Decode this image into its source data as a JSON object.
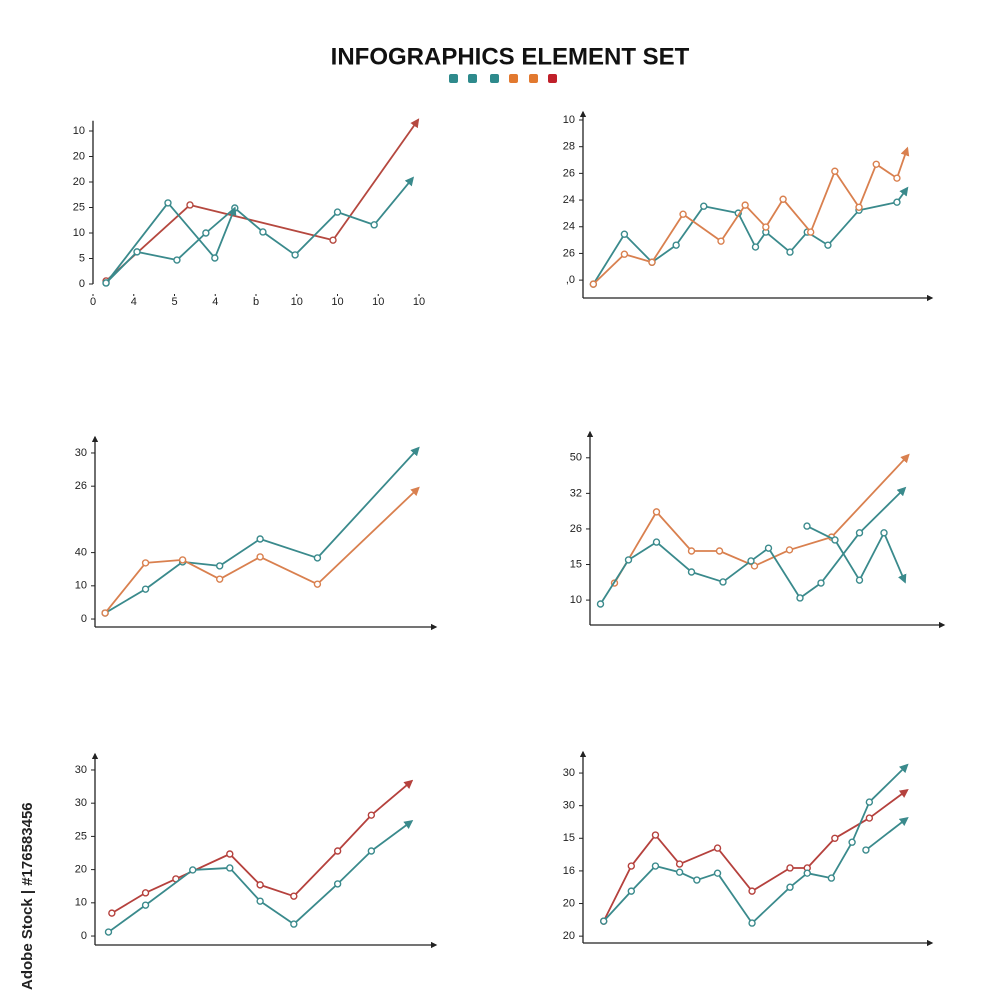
{
  "title": "INFOGRAPHICS ELEMENT SET",
  "watermark": "Adobe Stock | #176583456",
  "chart_data": [
    {
      "type": "line",
      "xlim": [
        0,
        8
      ],
      "ylim": [
        0,
        32
      ],
      "xticks": [
        0,
        {
          "value": 1,
          "label": "4"
        },
        {
          "value": 2,
          "label": "5"
        },
        {
          "value": 3,
          "label": "4"
        },
        {
          "value": 4,
          "label": "b"
        },
        {
          "value": 5,
          "label": "10"
        },
        {
          "value": 6,
          "label": "10"
        },
        {
          "value": 7,
          "label": "10"
        },
        {
          "value": 8,
          "label": "10"
        }
      ],
      "yticks": [
        0,
        5,
        10,
        {
          "value": 15,
          "label": "25"
        },
        {
          "value": 20,
          "label": "20"
        },
        {
          "value": 25,
          "label": "20"
        },
        {
          "value": 30,
          "label": "10"
        }
      ],
      "series": [
        {
          "color": "#b5483f",
          "x": [
            0.32,
            2.38,
            5.89,
            7.98
          ],
          "values": [
            0.6,
            15.5,
            8.6,
            32.2
          ]
        },
        {
          "color": "#3a8a8c",
          "x": [
            0.32,
            1.08,
            2.06,
            2.77,
            3.48,
            4.17,
            4.96,
            6.0,
            6.9,
            7.85
          ],
          "values": [
            0.2,
            6.3,
            4.7,
            10,
            14.9,
            10.2,
            5.7,
            14.1,
            11.6,
            20.8
          ]
        },
        {
          "color": "#3a8a8c",
          "x": [
            0.32,
            1.84,
            2.99,
            3.48
          ],
          "values": [
            0.2,
            15.9,
            5.1,
            14.9
          ]
        }
      ]
    },
    {
      "type": "line",
      "xlim": [
        0,
        1
      ],
      "ylim": [
        -0.67,
        6
      ],
      "yticks": [
        {
          "value": 0,
          "label": ",0"
        },
        {
          "value": 1,
          "label": "26"
        },
        {
          "value": 2,
          "label": "24"
        },
        {
          "value": 3,
          "label": "24"
        },
        {
          "value": 4,
          "label": "26"
        },
        {
          "value": 5,
          "label": "28"
        },
        {
          "value": 6,
          "label": "10"
        }
      ],
      "series": [
        {
          "color": "#3a8a8c",
          "x": [
            0.03,
            0.12,
            0.2,
            0.27,
            0.35,
            0.45,
            0.5,
            0.53,
            0.6,
            0.65,
            0.71,
            0.8,
            0.91,
            0.94
          ],
          "values": [
            -0.15,
            1.72,
            0.67,
            1.31,
            2.77,
            2.51,
            1.24,
            1.8,
            1.05,
            1.8,
            1.31,
            2.62,
            2.92,
            3.45
          ]
        },
        {
          "color": "#d9804f",
          "x": [
            0.03,
            0.12,
            0.2,
            0.29,
            0.4,
            0.47,
            0.53,
            0.58,
            0.66,
            0.73,
            0.8,
            0.85,
            0.91,
            0.94
          ],
          "values": [
            -0.15,
            0.97,
            0.67,
            2.47,
            1.46,
            2.81,
            1.99,
            3.03,
            1.8,
            4.08,
            2.73,
            4.34,
            3.82,
            4.94
          ]
        }
      ]
    },
    {
      "type": "line",
      "xlim": [
        0,
        1
      ],
      "ylim": [
        -2.4,
        52.4
      ],
      "yticks": [
        0,
        10,
        {
          "value": 20,
          "label": "40"
        },
        {
          "value": 40,
          "label": "26"
        },
        {
          "value": 50,
          "label": "30"
        }
      ],
      "series": [
        {
          "color": "#3a8a8c",
          "x": [
            0.03,
            0.15,
            0.26,
            0.37,
            0.49,
            0.66,
            0.96
          ],
          "values": [
            1.8,
            9,
            17.2,
            16,
            24.1,
            18.4,
            51.5
          ]
        },
        {
          "color": "#d9804f",
          "x": [
            0.03,
            0.15,
            0.26,
            0.37,
            0.49,
            0.66,
            0.96
          ],
          "values": [
            1.8,
            16.9,
            17.8,
            12,
            18.7,
            10.5,
            39.5
          ]
        }
      ]
    },
    {
      "type": "line",
      "xlim": [
        0,
        1
      ],
      "ylim": [
        -0.7,
        4.5
      ],
      "yticks": [
        {
          "value": 0,
          "label": "10"
        },
        {
          "value": 1,
          "label": "15"
        },
        {
          "value": 2,
          "label": "26"
        },
        {
          "value": 3,
          "label": "32"
        },
        {
          "value": 4,
          "label": "50"
        }
      ],
      "series": [
        {
          "color": "#d9804f",
          "x": [
            0.07,
            0.19,
            0.29,
            0.37,
            0.47,
            0.57,
            0.69,
            0.91
          ],
          "values": [
            0.48,
            2.48,
            1.38,
            1.38,
            0.96,
            1.41,
            1.77,
            4.08
          ]
        },
        {
          "color": "#3a8a8c",
          "x": [
            0.03,
            0.11,
            0.19,
            0.29,
            0.38,
            0.46,
            0.51,
            0.6,
            0.66,
            0.77,
            0.9
          ],
          "values": [
            -0.11,
            1.13,
            1.63,
            0.79,
            0.51,
            1.1,
            1.46,
            0.06,
            0.48,
            1.89,
            3.15
          ]
        },
        {
          "color": "#3a8a8c",
          "x": [
            0.62,
            0.7,
            0.77,
            0.84,
            0.9
          ],
          "values": [
            2.08,
            1.69,
            0.56,
            1.89,
            0.51
          ]
        }
      ]
    },
    {
      "type": "line",
      "xlim": [
        0,
        1
      ],
      "ylim": [
        -2.7,
        52.4
      ],
      "yticks": [
        0,
        10,
        20,
        {
          "value": 30,
          "label": "25"
        },
        {
          "value": 40,
          "label": "30"
        },
        {
          "value": 50,
          "label": "30"
        }
      ],
      "series": [
        {
          "color": "#b5413d",
          "x": [
            0.05,
            0.15,
            0.24,
            0.4,
            0.49,
            0.59,
            0.72,
            0.82,
            0.94
          ],
          "values": [
            6.9,
            13,
            17.2,
            24.7,
            15.4,
            12,
            25.6,
            36.4,
            46.7
          ]
        },
        {
          "color": "#3a8a8c",
          "x": [
            0.04,
            0.15,
            0.29,
            0.4,
            0.49,
            0.59,
            0.72,
            0.82,
            0.94
          ],
          "values": [
            1.2,
            9.3,
            19.9,
            20.5,
            10.5,
            3.6,
            15.7,
            25.6,
            34.6
          ]
        }
      ]
    },
    {
      "type": "line",
      "xlim": [
        0,
        1
      ],
      "ylim": [
        -0.21,
        5.4
      ],
      "yticks": [
        {
          "value": 0,
          "label": "20"
        },
        {
          "value": 1,
          "label": "20"
        },
        {
          "value": 2,
          "label": "16"
        },
        {
          "value": 3,
          "label": "15"
        },
        {
          "value": 4,
          "label": "30"
        },
        {
          "value": 5,
          "label": "30"
        }
      ],
      "series": [
        {
          "color": "#b5413d",
          "x": [
            0.06,
            0.14,
            0.21,
            0.28,
            0.39,
            0.49,
            0.6,
            0.65,
            0.73,
            0.83,
            0.94
          ],
          "values": [
            0.46,
            2.15,
            3.1,
            2.21,
            2.7,
            1.38,
            2.09,
            2.09,
            3,
            3.62,
            4.48
          ]
        },
        {
          "color": "#3a8a8c",
          "x": [
            0.06,
            0.14,
            0.21,
            0.28,
            0.33,
            0.39,
            0.49,
            0.6,
            0.65,
            0.72,
            0.78,
            0.83,
            0.94
          ],
          "values": [
            0.46,
            1.38,
            2.15,
            1.96,
            1.72,
            1.93,
            0.4,
            1.5,
            1.93,
            1.78,
            2.88,
            4.11,
            5.25
          ]
        },
        {
          "color": "#3a8a8c",
          "x": [
            0.82,
            0.94
          ],
          "values": [
            2.64,
            3.62
          ]
        }
      ]
    }
  ]
}
